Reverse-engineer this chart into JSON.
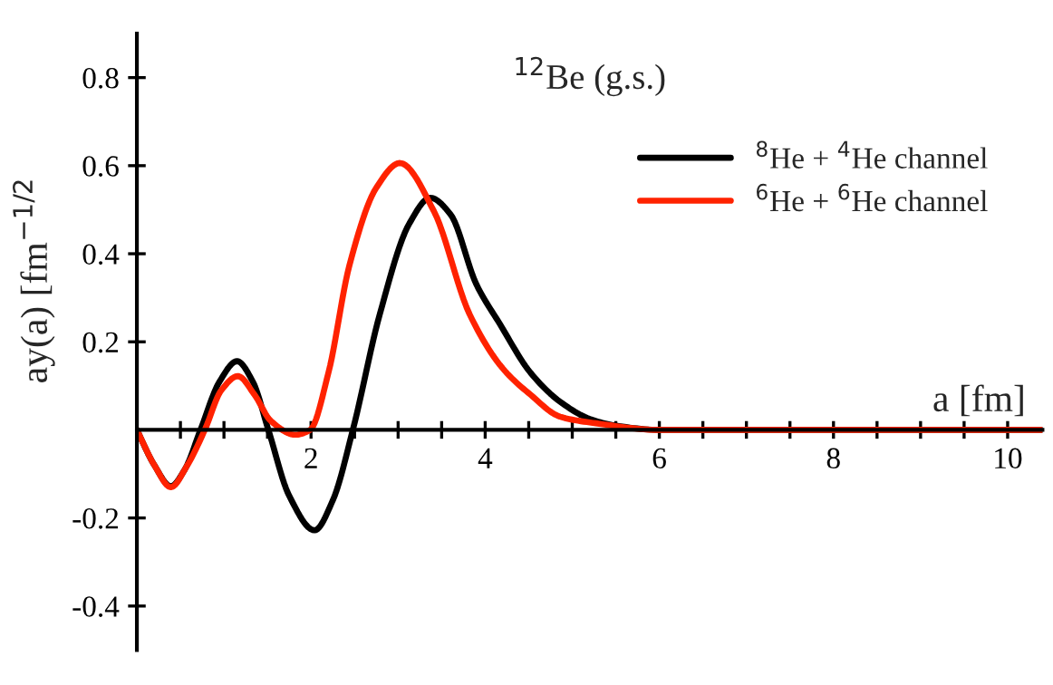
{
  "chart_data": {
    "type": "line",
    "title": "$^{12}$Be (g.s.)",
    "xlabel": "a [fm]",
    "ylabel": "ay(a) [fm$^{−1/2}$",
    "xlim": [
      0,
      10.4
    ],
    "ylim": [
      -0.5,
      0.9
    ],
    "xticks": [
      {
        "value": 0.5,
        "label": null
      },
      {
        "value": 1,
        "label": null
      },
      {
        "value": 1.5,
        "label": null
      },
      2,
      {
        "value": 2.5,
        "label": null
      },
      {
        "value": 3,
        "label": null
      },
      {
        "value": 3.5,
        "label": null
      },
      4,
      {
        "value": 4.5,
        "label": null
      },
      {
        "value": 5,
        "label": null
      },
      {
        "value": 5.5,
        "label": null
      },
      6,
      {
        "value": 6.5,
        "label": null
      },
      {
        "value": 7,
        "label": null
      },
      {
        "value": 7.5,
        "label": null
      },
      8,
      {
        "value": 8.5,
        "label": null
      },
      {
        "value": 9,
        "label": null
      },
      {
        "value": 9.5,
        "label": null
      },
      10
    ],
    "yticks": [
      {
        "value": -0.4,
        "label": "-0.4"
      },
      {
        "value": -0.2,
        "label": "-0.2"
      },
      0.2,
      0.4,
      0.6,
      0.8
    ],
    "legend": "top right",
    "marker": "none",
    "line_style": "solid",
    "series": [
      {
        "name": "$^{8}$He + $^{4}$He channel",
        "color": "#000000",
        "x": [
          0,
          0.2,
          0.39,
          0.55,
          0.73,
          0.95,
          1.15,
          1.33,
          1.51,
          1.75,
          2.04,
          2.25,
          2.48,
          2.79,
          3.13,
          3.37,
          3.6,
          3.9,
          4.17,
          4.52,
          4.86,
          5.2,
          5.49,
          6.0,
          7.0,
          8.0,
          9.0,
          10.0,
          10.4
        ],
        "values": [
          0,
          -0.08,
          -0.128,
          -0.09,
          0,
          0.11,
          0.156,
          0.11,
          0,
          -0.15,
          -0.228,
          -0.16,
          0,
          0.263,
          0.469,
          0.527,
          0.49,
          0.33,
          0.24,
          0.13,
          0.064,
          0.025,
          0.01,
          0,
          0,
          0,
          0,
          0,
          0
        ]
      },
      {
        "name": "$^{6}$He + $^{6}$He channel",
        "color": "#ff2200",
        "x": [
          0,
          0.2,
          0.39,
          0.58,
          0.78,
          0.97,
          1.16,
          1.35,
          1.54,
          1.82,
          1.99,
          2.2,
          2.44,
          2.75,
          3.02,
          3.41,
          3.82,
          4.2,
          4.52,
          4.86,
          5.27,
          6.0,
          7.0,
          8.0,
          9.0,
          10.0,
          10.4
        ],
        "values": [
          0,
          -0.08,
          -0.13,
          -0.08,
          0,
          0.09,
          0.122,
          0.08,
          0.02,
          -0.011,
          0,
          0.13,
          0.373,
          0.55,
          0.606,
          0.497,
          0.263,
          0.14,
          0.08,
          0.03,
          0.015,
          0,
          0,
          0,
          0,
          0,
          0
        ]
      }
    ]
  }
}
